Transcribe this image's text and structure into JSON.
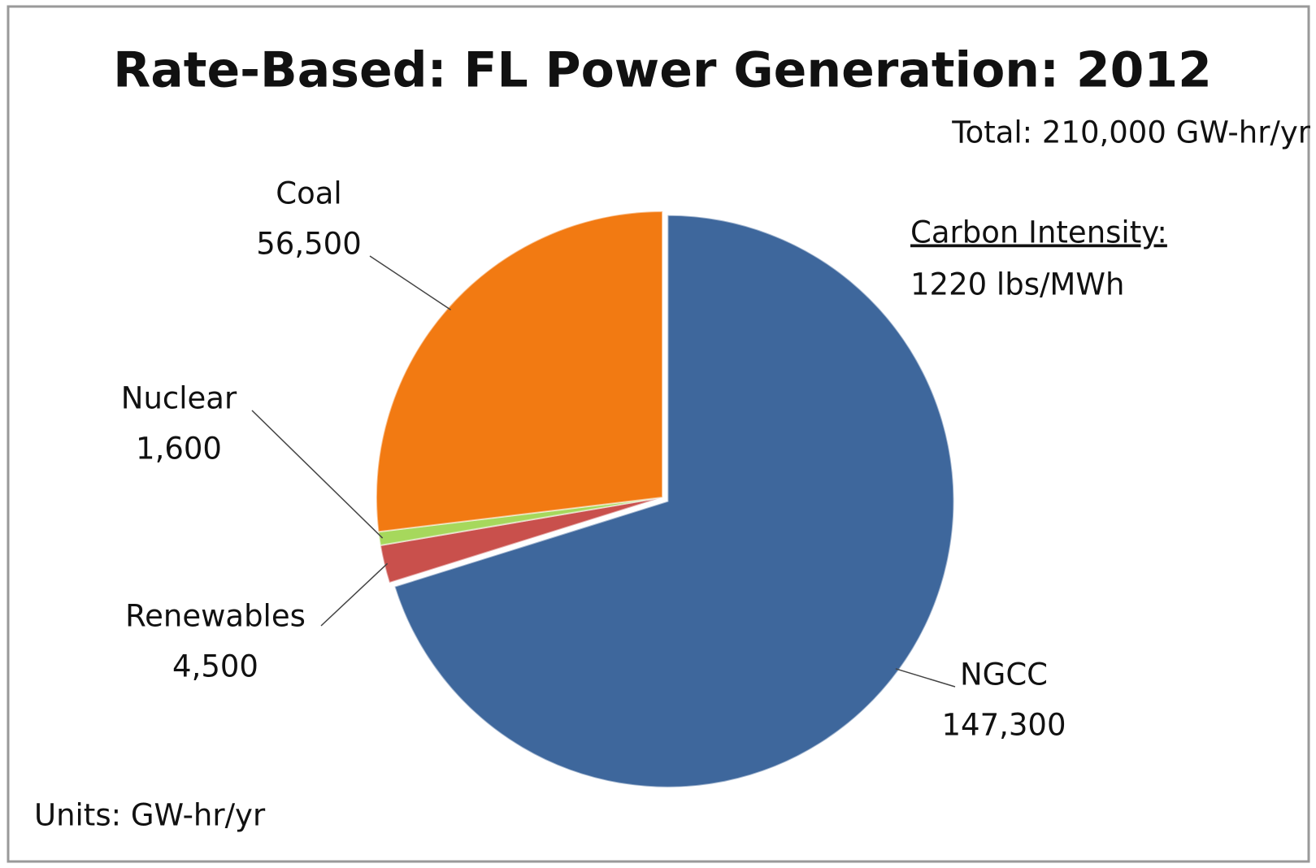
{
  "chart_data": {
    "type": "pie",
    "title": "Rate-Based: FL Power Generation: 2012",
    "annotations": [
      "Total: 210,000 GW-hr/yr",
      "Carbon Intensity:",
      "1220 lbs/MWh",
      "Units: GW-hr/yr"
    ],
    "categories": [
      "NGCC",
      "Renewables",
      "Nuclear",
      "Coal"
    ],
    "values": [
      147300,
      4500,
      1600,
      56500
    ],
    "value_labels": [
      "147,300",
      "4,500",
      "1,600",
      "56,500"
    ],
    "colors": [
      "#3e679c",
      "#c9504c",
      "#a6d85c",
      "#f27a12"
    ]
  }
}
